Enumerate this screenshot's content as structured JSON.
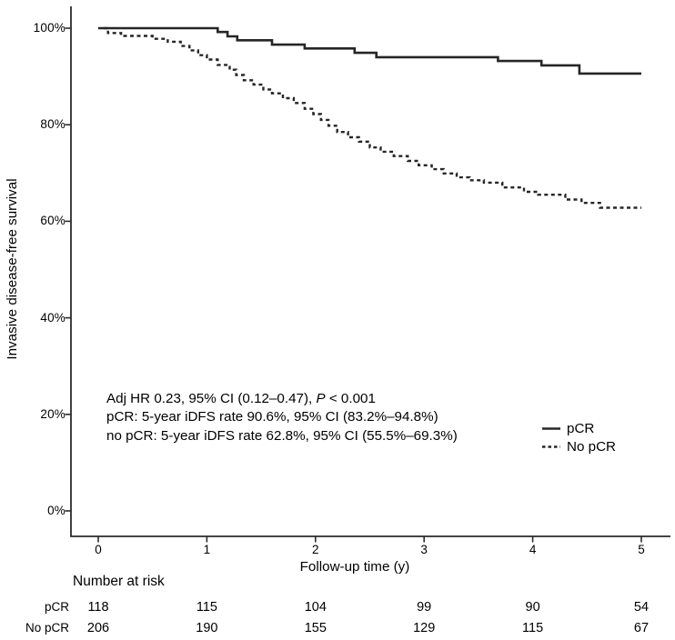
{
  "colors": {
    "curve": "#262626",
    "axis": "#2b2b2b",
    "text": "#000000",
    "background": "#ffffff"
  },
  "chart_data": {
    "type": "line",
    "subtype": "kaplan-meier-step",
    "title": "",
    "xlabel": "Follow-up time (y)",
    "ylabel": "Invasive disease-free survival",
    "xlim": [
      0,
      5
    ],
    "ylim": [
      0,
      100
    ],
    "grid": "off",
    "x_ticks": [
      0,
      1,
      2,
      3,
      4,
      5
    ],
    "y_tick_labels": [
      "0%",
      "20%",
      "40%",
      "60%",
      "80%",
      "100%"
    ],
    "legend": {
      "position": "right-lower",
      "entries": [
        {
          "label": "pCR",
          "style": "solid"
        },
        {
          "label": "No pCR",
          "style": "dashed"
        }
      ]
    },
    "series": [
      {
        "name": "pCR",
        "line_style": "solid",
        "points": [
          [
            0,
            100
          ],
          [
            1.1,
            99.2
          ],
          [
            1.19,
            98.3
          ],
          [
            1.28,
            97.5
          ],
          [
            1.6,
            96.6
          ],
          [
            1.9,
            95.8
          ],
          [
            2.36,
            94.9
          ],
          [
            2.56,
            94.0
          ],
          [
            3.68,
            93.2
          ],
          [
            4.08,
            92.3
          ],
          [
            4.43,
            90.6
          ],
          [
            5.0,
            90.6
          ]
        ]
      },
      {
        "name": "No pCR",
        "line_style": "dashed",
        "points": [
          [
            0.05,
            100
          ],
          [
            0.09,
            99.0
          ],
          [
            0.21,
            98.4
          ],
          [
            0.5,
            97.8
          ],
          [
            0.64,
            97.2
          ],
          [
            0.76,
            96.3
          ],
          [
            0.84,
            95.4
          ],
          [
            0.92,
            94.4
          ],
          [
            1.0,
            93.5
          ],
          [
            1.1,
            92.4
          ],
          [
            1.21,
            91.4
          ],
          [
            1.27,
            90.3
          ],
          [
            1.34,
            89.2
          ],
          [
            1.43,
            88.3
          ],
          [
            1.52,
            87.3
          ],
          [
            1.6,
            86.5
          ],
          [
            1.7,
            85.5
          ],
          [
            1.8,
            84.5
          ],
          [
            1.9,
            83.3
          ],
          [
            1.98,
            82.2
          ],
          [
            2.05,
            81.0
          ],
          [
            2.12,
            79.8
          ],
          [
            2.2,
            78.5
          ],
          [
            2.3,
            77.4
          ],
          [
            2.4,
            76.5
          ],
          [
            2.5,
            75.3
          ],
          [
            2.6,
            74.4
          ],
          [
            2.72,
            73.5
          ],
          [
            2.85,
            72.5
          ],
          [
            2.95,
            71.6
          ],
          [
            3.07,
            70.8
          ],
          [
            3.18,
            69.9
          ],
          [
            3.3,
            69.1
          ],
          [
            3.42,
            68.5
          ],
          [
            3.55,
            68.0
          ],
          [
            3.72,
            67.0
          ],
          [
            3.92,
            66.1
          ],
          [
            4.05,
            65.5
          ],
          [
            4.3,
            64.5
          ],
          [
            4.45,
            63.8
          ],
          [
            4.62,
            62.8
          ],
          [
            5.0,
            62.8
          ]
        ]
      }
    ],
    "annotation": {
      "line1_pre": "Adj HR 0.23, 95% CI (0.12–0.47), ",
      "line1_italic": "P",
      "line1_post": " < 0.001",
      "line2": "pCR: 5-year iDFS rate 90.6%, 95% CI (83.2%–94.8%)",
      "line3": "no pCR: 5-year iDFS rate 62.8%, 95% CI (55.5%–69.3%)"
    },
    "risk_table": {
      "heading": "Number at risk",
      "time_points": [
        0,
        1,
        2,
        3,
        4,
        5
      ],
      "rows": [
        {
          "label": "pCR",
          "values": [
            118,
            115,
            104,
            99,
            90,
            54
          ]
        },
        {
          "label": "No pCR",
          "values": [
            206,
            190,
            155,
            129,
            115,
            67
          ]
        }
      ]
    }
  }
}
